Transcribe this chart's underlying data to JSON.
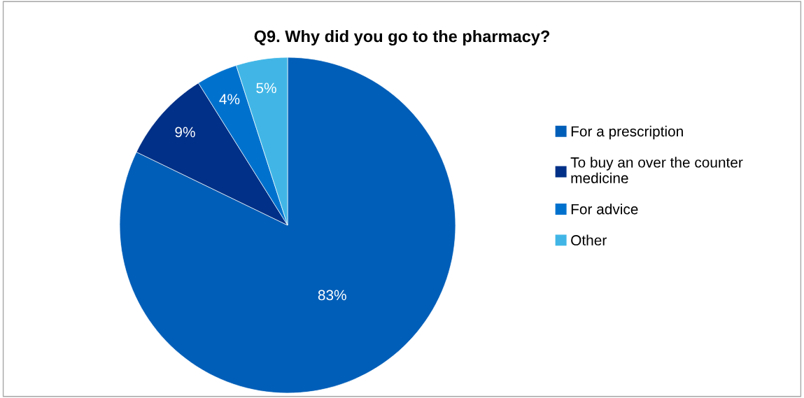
{
  "chart_data": {
    "type": "pie",
    "title": "Q9. Why did you go to the pharmacy?",
    "categories": [
      "For a prescription",
      "To buy an over the counter\nmedicine",
      "For advice",
      "Other"
    ],
    "values": [
      83,
      9,
      4,
      5
    ],
    "colors": [
      "#005eb8",
      "#003087",
      "#0072ce",
      "#41b6e6"
    ],
    "value_labels": [
      "83%",
      "9%",
      "4%",
      "5%"
    ],
    "legend": "right"
  }
}
